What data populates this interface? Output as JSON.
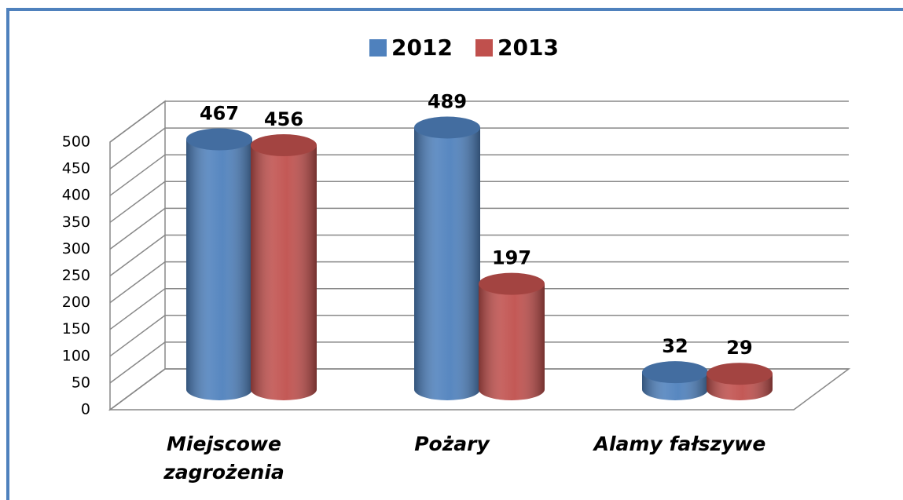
{
  "chart_data": {
    "type": "bar3d",
    "categories": [
      "Miejscowe zagrożenia",
      "Pożary",
      "Alamy fałszywe"
    ],
    "series": [
      {
        "name": "2012",
        "color": "#4f81bd",
        "values": [
          467,
          489,
          32
        ]
      },
      {
        "name": "2013",
        "color": "#c0504d",
        "values": [
          456,
          197,
          29
        ]
      }
    ],
    "ylim": [
      0,
      500
    ],
    "yticks": [
      0,
      50,
      100,
      150,
      200,
      250,
      300,
      350,
      400,
      450,
      500
    ],
    "grid": true,
    "legend": "top"
  }
}
